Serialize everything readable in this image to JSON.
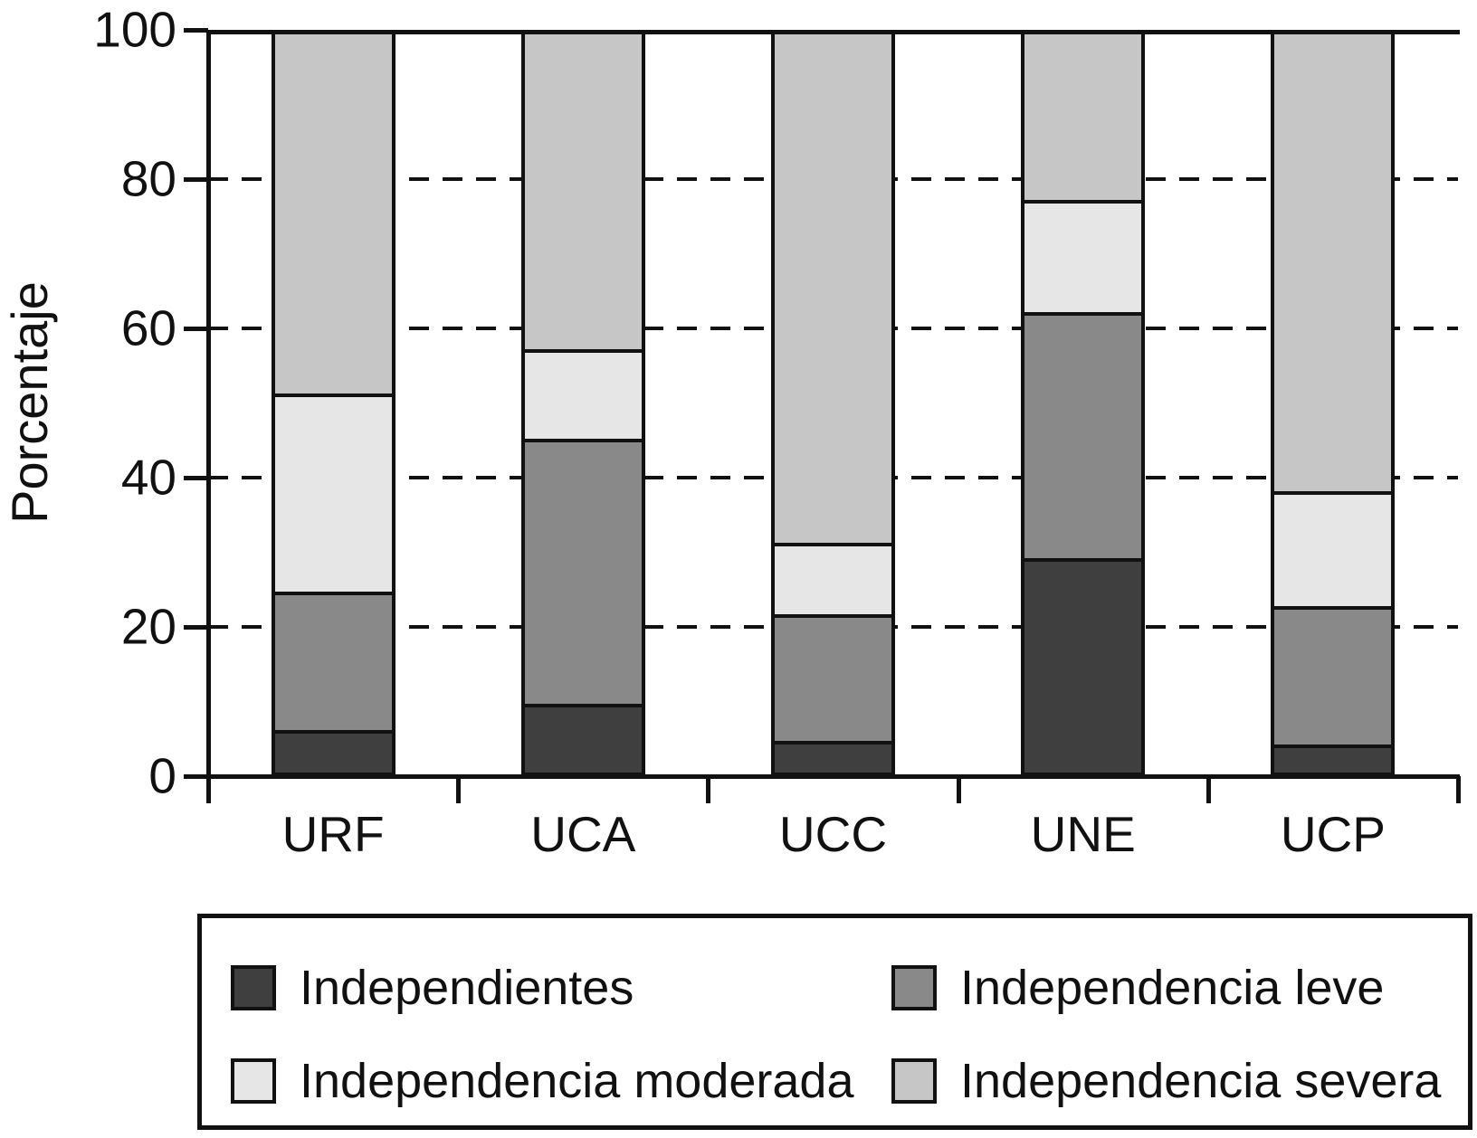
{
  "chart_data": {
    "type": "bar",
    "stacked": true,
    "title": "",
    "xlabel": "",
    "ylabel": "Porcentaje",
    "ylim": [
      0,
      100
    ],
    "yticks": [
      0,
      20,
      40,
      60,
      80,
      100
    ],
    "ytick_labels": [
      "0",
      "20",
      "40",
      "60",
      "80",
      "100"
    ],
    "grid": "horizontal dashed lines at 20, 40, 60, 80",
    "legend_position": "bottom boxed, 2 columns",
    "categories": [
      "URF",
      "UCA",
      "UCC",
      "UNE",
      "UCP"
    ],
    "series": [
      {
        "name": "Independientes",
        "color": "#3f3f3f",
        "values": [
          6,
          9.5,
          4.5,
          29,
          4
        ]
      },
      {
        "name": "Independencia leve",
        "color": "#898989",
        "values": [
          18.5,
          35.5,
          17,
          33,
          18.5
        ]
      },
      {
        "name": "Independencia moderada",
        "color": "#e6e6e6",
        "values": [
          26.5,
          12,
          9.5,
          15,
          15.5
        ]
      },
      {
        "name": "Independencia severa",
        "color": "#c6c6c6",
        "values": [
          49,
          43,
          69,
          23,
          62
        ]
      }
    ],
    "cumulative_tops_percent": {
      "URF": [
        6,
        24.5,
        51,
        100
      ],
      "UCA": [
        9.5,
        45,
        57,
        100
      ],
      "UCC": [
        4.5,
        21.5,
        31,
        100
      ],
      "UNE": [
        29,
        62,
        77,
        100
      ],
      "UCP": [
        4,
        22.5,
        38,
        100
      ]
    },
    "axis_color": "#111111",
    "background_color": "#ffffff"
  },
  "legend": {
    "items": [
      {
        "label": "Independientes",
        "color": "#3f3f3f"
      },
      {
        "label": "Independencia leve",
        "color": "#898989"
      },
      {
        "label": "Independencia moderada",
        "color": "#e6e6e6"
      },
      {
        "label": "Independencia severa",
        "color": "#c6c6c6"
      }
    ]
  }
}
